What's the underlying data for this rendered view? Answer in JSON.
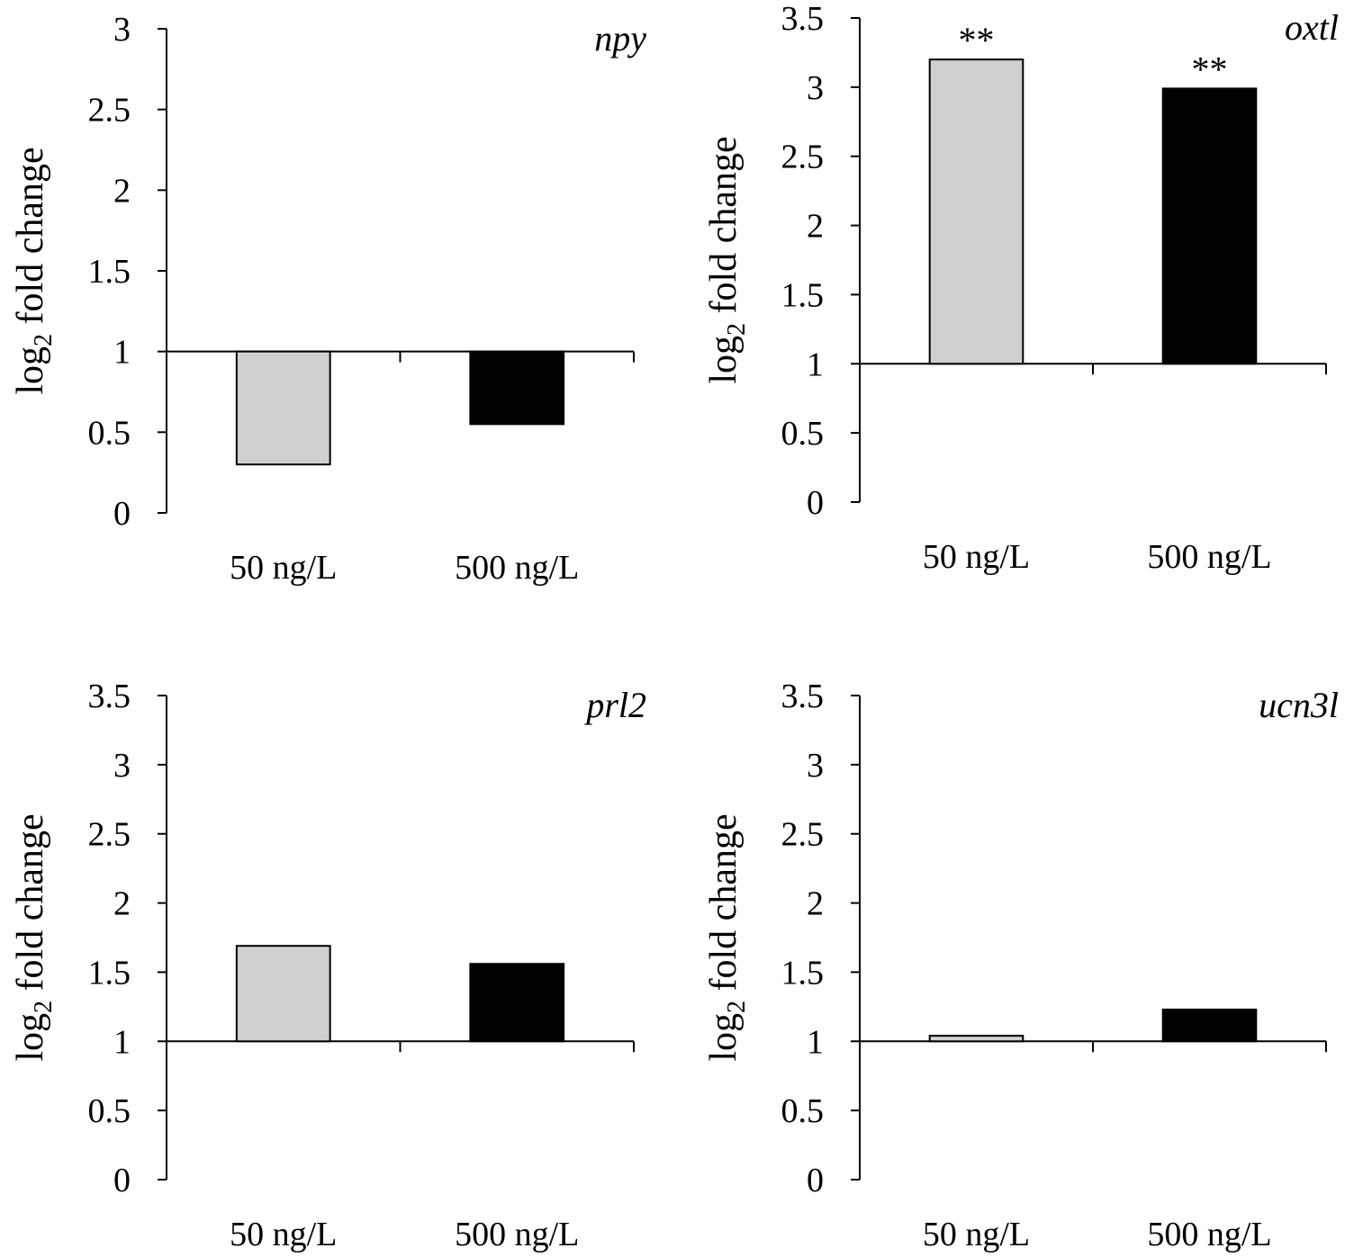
{
  "figure": {
    "colors": {
      "low_dose": "#d0d0d0",
      "high_dose": "#000000",
      "axis": "#000000",
      "bar_stroke": "#000000"
    }
  },
  "chart_data": [
    {
      "type": "bar",
      "title": "npy",
      "ylabel": "log2 fold change",
      "ylabel_main": "log",
      "ylabel_sub": "2",
      "ylabel_rest": " fold change",
      "xlabel": "",
      "baseline": 1,
      "ylim": [
        0,
        3
      ],
      "yticks": [
        0,
        0.5,
        1,
        1.5,
        2,
        2.5,
        3
      ],
      "ytick_labels": [
        "0",
        "0.5",
        "1",
        "1.5",
        "2",
        "2.5",
        "3"
      ],
      "categories": [
        "50 ng/L",
        "500 ng/L"
      ],
      "values": [
        0.3,
        0.55
      ],
      "significance": [
        "",
        ""
      ]
    },
    {
      "type": "bar",
      "title": "oxtl",
      "ylabel": "log2 fold change",
      "ylabel_main": "log",
      "ylabel_sub": "2",
      "ylabel_rest": " fold change",
      "xlabel": "",
      "baseline": 1,
      "ylim": [
        0,
        3.5
      ],
      "yticks": [
        0,
        0.5,
        1,
        1.5,
        2,
        2.5,
        3,
        3.5
      ],
      "ytick_labels": [
        "0",
        "0.5",
        "1",
        "1.5",
        "2",
        "2.5",
        "3",
        "3.5"
      ],
      "categories": [
        "50 ng/L",
        "500 ng/L"
      ],
      "values": [
        3.2,
        2.99
      ],
      "significance": [
        "**",
        "**"
      ]
    },
    {
      "type": "bar",
      "title": "prl2",
      "ylabel": "log2 fold change",
      "ylabel_main": "log",
      "ylabel_sub": "2",
      "ylabel_rest": " fold change",
      "xlabel": "",
      "baseline": 1,
      "ylim": [
        0,
        3.5
      ],
      "yticks": [
        0,
        0.5,
        1,
        1.5,
        2,
        2.5,
        3,
        3.5
      ],
      "ytick_labels": [
        "0",
        "0.5",
        "1",
        "1.5",
        "2",
        "2.5",
        "3",
        "3.5"
      ],
      "categories": [
        "50 ng/L",
        "500 ng/L"
      ],
      "values": [
        1.69,
        1.56
      ],
      "significance": [
        "",
        ""
      ]
    },
    {
      "type": "bar",
      "title": "ucn3l",
      "ylabel": "log2 fold change",
      "ylabel_main": "log",
      "ylabel_sub": "2",
      "ylabel_rest": " fold change",
      "xlabel": "",
      "baseline": 1,
      "ylim": [
        0,
        3.5
      ],
      "yticks": [
        0,
        0.5,
        1,
        1.5,
        2,
        2.5,
        3,
        3.5
      ],
      "ytick_labels": [
        "0",
        "0.5",
        "1",
        "1.5",
        "2",
        "2.5",
        "3",
        "3.5"
      ],
      "categories": [
        "50 ng/L",
        "500 ng/L"
      ],
      "values": [
        1.04,
        1.23
      ],
      "significance": [
        "",
        ""
      ]
    }
  ]
}
